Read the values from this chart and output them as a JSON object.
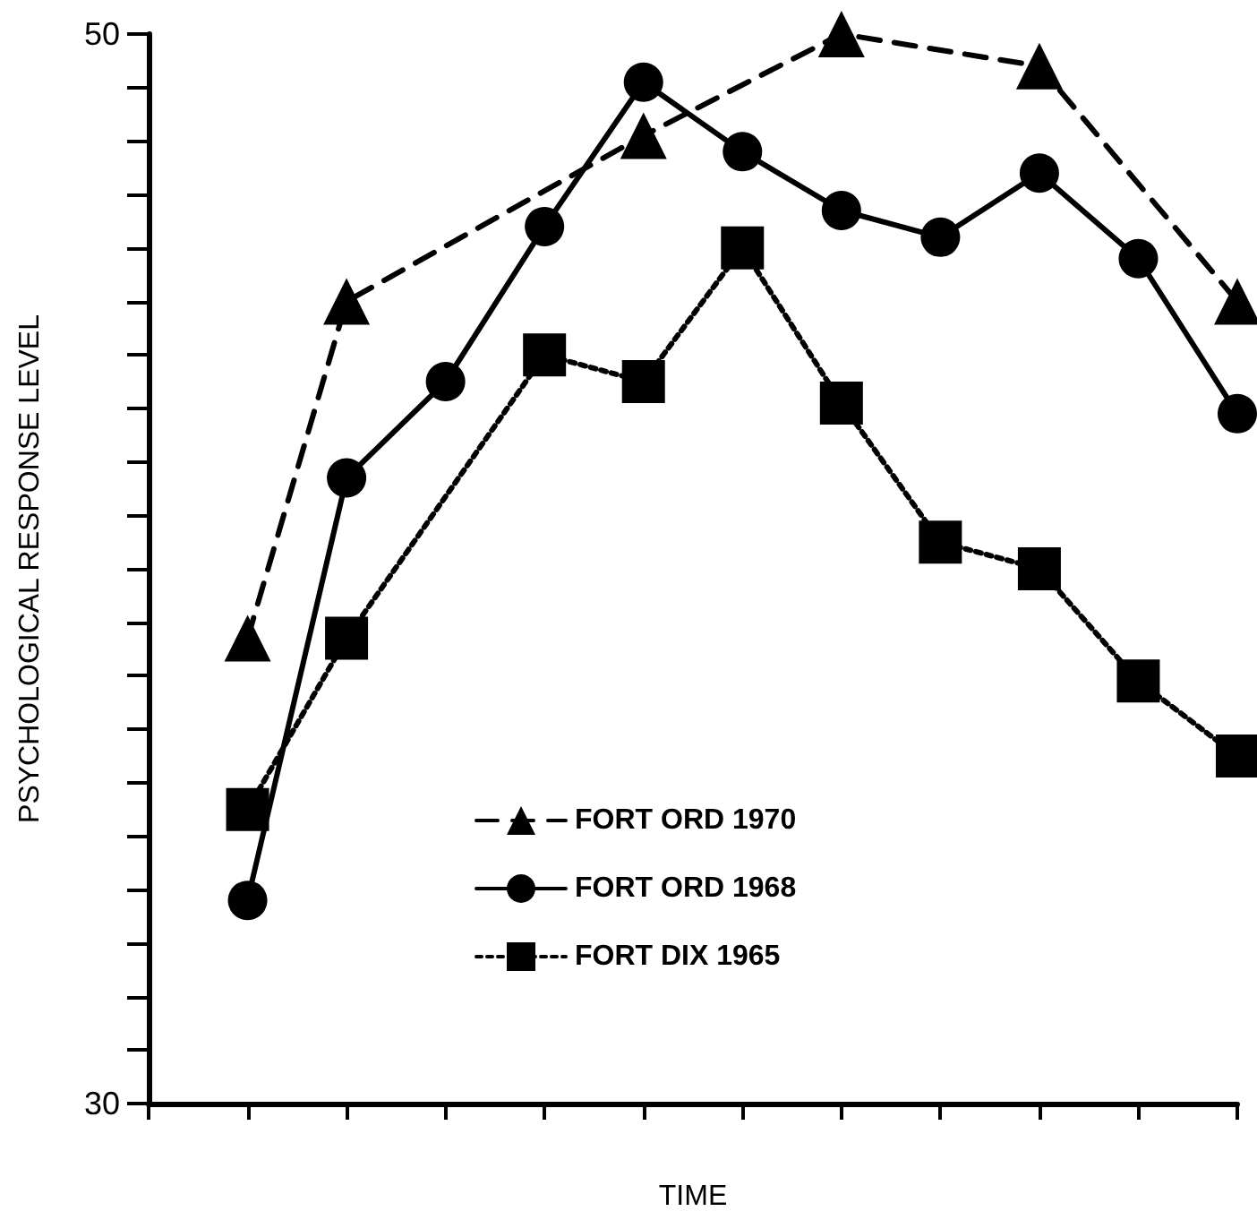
{
  "chart_data": {
    "type": "line",
    "xlabel": "TIME",
    "ylabel": "PSYCHOLOGICAL RESPONSE LEVEL",
    "categories": [
      null,
      null,
      null,
      null,
      null,
      null,
      null,
      null,
      null,
      null,
      null
    ],
    "series": [
      {
        "name": "FORT ORD 1970",
        "color": "#000000",
        "marker": "triangle",
        "line_style": "dashed",
        "values": [
          38.7,
          45.0,
          null,
          null,
          48.1,
          null,
          50.0,
          null,
          49.4,
          null,
          45.0
        ]
      },
      {
        "name": "FORT ORD 1968",
        "color": "#000000",
        "marker": "circle",
        "line_style": "solid",
        "values": [
          33.8,
          41.7,
          43.5,
          46.4,
          49.1,
          47.8,
          46.7,
          46.2,
          47.4,
          45.8,
          42.9
        ]
      },
      {
        "name": "FORT DIX 1965",
        "color": "#000000",
        "marker": "square",
        "line_style": "dotted",
        "values": [
          35.5,
          38.7,
          null,
          44.0,
          43.5,
          46.0,
          43.1,
          40.5,
          40.0,
          37.9,
          36.5
        ]
      }
    ],
    "ylim": [
      30,
      50
    ],
    "yticks": [
      30,
      {
        "value": 31,
        "label": null
      },
      {
        "value": 32,
        "label": null
      },
      {
        "value": 33,
        "label": null
      },
      {
        "value": 34,
        "label": null
      },
      {
        "value": 35,
        "label": null
      },
      {
        "value": 36,
        "label": null
      },
      {
        "value": 37,
        "label": null
      },
      {
        "value": 38,
        "label": null
      },
      {
        "value": 39,
        "label": null
      },
      {
        "value": 40,
        "label": null
      },
      {
        "value": 41,
        "label": null
      },
      {
        "value": 42,
        "label": null
      },
      {
        "value": 43,
        "label": null
      },
      {
        "value": 44,
        "label": null
      },
      {
        "value": 45,
        "label": null
      },
      {
        "value": 46,
        "label": null
      },
      {
        "value": 47,
        "label": null
      },
      {
        "value": 48,
        "label": null
      },
      {
        "value": 49,
        "label": null
      },
      50
    ],
    "tick_labels": "y",
    "grid": false,
    "legend": "bottom"
  }
}
